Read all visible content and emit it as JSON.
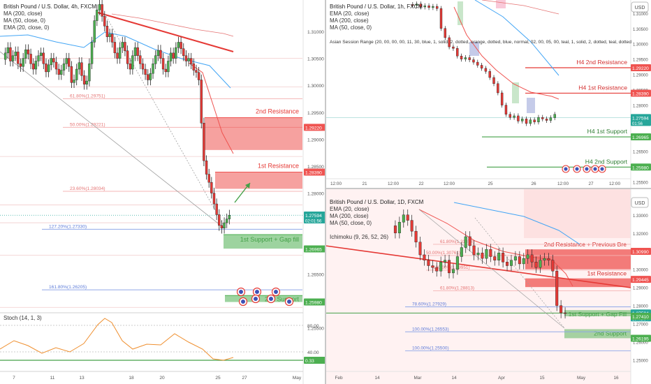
{
  "left": {
    "title": "British Pound / U.S. Dollar, 4h, FXCM",
    "indicators": [
      "MA (200, close)",
      "MA (50, close, 0)",
      "EMA (20, close, 0)"
    ],
    "fibs": [
      {
        "label": "61.80%(1.29751)",
        "value": 1.29751
      },
      {
        "label": "50.00%(1.29221)",
        "value": 1.29221
      },
      {
        "label": "23.60%(1.28034)",
        "value": 1.28034
      },
      {
        "label": "127.20%(1.27330)",
        "value": 1.2733
      },
      {
        "label": "161.80%(1.26205)",
        "value": 1.26205
      }
    ],
    "zones": [
      {
        "label": "2nd Resistance",
        "color": "#ef5350"
      },
      {
        "label": "1st Resistance",
        "color": "#ef5350"
      },
      {
        "label": "1st Support + Gap fill",
        "color": "#4caf50"
      },
      {
        "label": "2nd Support",
        "color": "#4caf50"
      }
    ],
    "price_ticks": [
      "1.31000",
      "1.30500",
      "1.30000",
      "1.29500",
      "1.29000",
      "1.28500",
      "1.28000",
      "1.27500",
      "1.27000",
      "1.26500",
      "1.26000",
      "1.25500"
    ],
    "tags": [
      {
        "text": "1.29220",
        "color": "#ef5350"
      },
      {
        "text": "1.28390",
        "color": "#ef5350"
      },
      {
        "text": "1.27594",
        "sub": "02:01:56",
        "color": "#26a69a"
      },
      {
        "text": "1.26965",
        "color": "#4caf50"
      },
      {
        "text": "1.25980",
        "color": "#4caf50"
      }
    ],
    "stoch": {
      "label": "Stoch (14, 1, 3)",
      "ticks": [
        "80.00",
        "40.00"
      ],
      "value": "0.33"
    },
    "dates": [
      "7",
      "11",
      "13",
      "18",
      "20",
      "25",
      "27",
      "May"
    ]
  },
  "top_right": {
    "title": "British Pound / U.S. Dollar, 1h, FXCM",
    "indicators": [
      "EMA (20, close)",
      "MA (200, close)",
      "MA (50, close, 0)",
      "Asian Session Range (20, 00, 00, 00, 11, 30, blue, 1, solid, 2, dotted, orange, dotted, blue, normal, 02, 00, 05, 00, teal, 1, solid, 2, dotted, teal, dotted"
    ],
    "currency": "USD",
    "levels": [
      {
        "label": "H4 2nd Resistance",
        "color": "#d32f2f"
      },
      {
        "label": "H4 1st Resistance",
        "color": "#d32f2f"
      },
      {
        "label": "H4 1st Support",
        "color": "#2e7d32"
      },
      {
        "label": "H4 2nd Support",
        "color": "#2e7d32"
      }
    ],
    "price_ticks": [
      "1.31000",
      "1.30500",
      "1.30000",
      "1.29500",
      "1.29000",
      "1.28500",
      "1.28000",
      "1.27500",
      "1.27000",
      "1.26500",
      "1.26000",
      "1.25500"
    ],
    "tags": [
      {
        "text": "1.29220",
        "color": "#ef5350"
      },
      {
        "text": "1.28390",
        "color": "#ef5350"
      },
      {
        "text": "1.27594",
        "sub": "01:56",
        "color": "#26a69a"
      },
      {
        "text": "1.26965",
        "color": "#4caf50"
      },
      {
        "text": "1.25980",
        "color": "#4caf50"
      }
    ],
    "dates": [
      "12:00",
      "21",
      "12:00",
      "22",
      "12:00",
      "25",
      "26",
      "12:00",
      "27",
      "12:00"
    ]
  },
  "bottom_right": {
    "title": "British Pound / U.S. Dollar, 1D, FXCM",
    "indicators": [
      "EMA (20, close)",
      "MA (200, close)",
      "MA (50, close, 0)",
      "Ichimoku (9, 26, 52, 26)"
    ],
    "currency": "USD",
    "fibs": [
      {
        "label": "61.80%(1.31378)",
        "value": 1.31378
      },
      {
        "label": "50.00%(1.30761)",
        "value": 1.30761
      },
      {
        "label": "100.00%(1.29951)",
        "value": 1.29951
      },
      {
        "label": "61.80%(1.28813)",
        "value": 1.28813
      },
      {
        "label": "78.60%(1.27929)",
        "value": 1.27929
      },
      {
        "label": "100.00%(1.26553)",
        "value": 1.26553
      },
      {
        "label": "100.00%(1.25500)",
        "value": 1.255
      }
    ],
    "zones": [
      {
        "label": "2nd Resistance + Previous Bre",
        "color": "#ef5350"
      },
      {
        "label": "1st Resistance",
        "color": "#ef5350"
      },
      {
        "label": "1st Support + Gap Fill",
        "color": "#4caf50"
      },
      {
        "label": "2nd Support",
        "color": "#4caf50"
      }
    ],
    "price_ticks": [
      "1.33000",
      "1.32000",
      "1.31000",
      "1.30000",
      "1.29000",
      "1.28000",
      "1.27000",
      "1.26000",
      "1.25000"
    ],
    "tags": [
      {
        "text": "1.30990",
        "color": "#ef5350"
      },
      {
        "text": "1.29445",
        "color": "#ef5350"
      },
      {
        "text": "1.27594",
        "sub": "18:01:54",
        "color": "#26a69a"
      },
      {
        "text": "1.27410",
        "color": "#4caf50"
      },
      {
        "text": "1.26195",
        "color": "#4caf50"
      }
    ],
    "dates": [
      "Feb",
      "14",
      "Mar",
      "14",
      "Apr",
      "15",
      "May",
      "16"
    ]
  },
  "chart_data": [
    {
      "type": "line",
      "title": "British Pound / U.S. Dollar, 4h, FXCM",
      "categories": [
        "7",
        "11",
        "13",
        "18",
        "20",
        "25",
        "27"
      ],
      "series": [
        {
          "name": "EMA (20, close, 0)",
          "values": [
            1.3065,
            1.3055,
            1.3075,
            1.306,
            1.304,
            1.2935,
            1.279
          ]
        }
      ],
      "levels": [
        1.2922,
        1.2839,
        1.27594,
        1.26965,
        1.2598
      ],
      "ylim": [
        1.252,
        1.313
      ]
    },
    {
      "type": "line",
      "title": "British Pound / U.S. Dollar, 1h, FXCM",
      "categories": [
        "21",
        "22",
        "25",
        "26",
        "27"
      ],
      "series": [
        {
          "name": "EMA (20, close)",
          "values": [
            1.312,
            1.3,
            1.29,
            1.278,
            1.276
          ]
        }
      ],
      "levels": [
        1.2922,
        1.2839,
        1.27594,
        1.26965,
        1.2598
      ],
      "ylim": [
        1.253,
        1.314
      ]
    },
    {
      "type": "line",
      "title": "British Pound / U.S. Dollar, 1D, FXCM",
      "categories": [
        "Feb",
        "14",
        "Mar",
        "14",
        "Apr",
        "15",
        "May"
      ],
      "series": [
        {
          "name": "EMA (20, close)",
          "values": [
            1.305,
            1.304,
            1.31,
            1.305,
            1.306,
            1.303,
            1.293
          ]
        }
      ],
      "levels": [
        1.3099,
        1.29445,
        1.27594,
        1.2741,
        1.26195
      ],
      "ylim": [
        1.249,
        1.34
      ]
    }
  ]
}
